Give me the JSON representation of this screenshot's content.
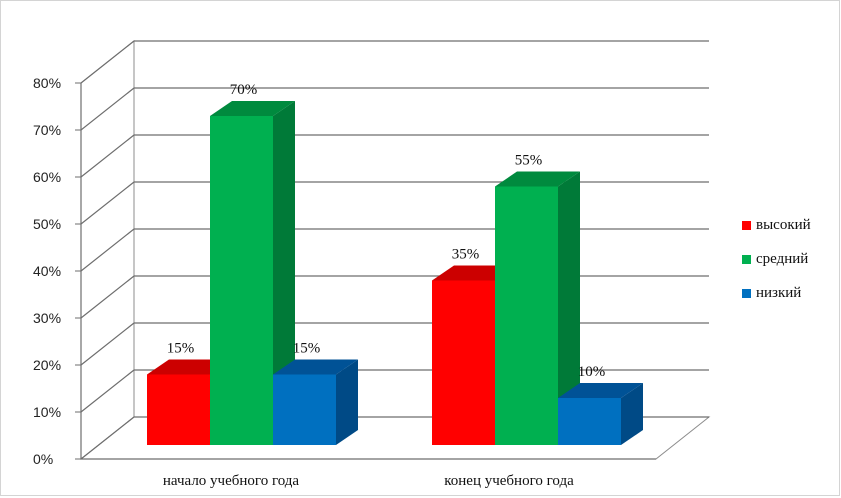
{
  "chart_data": {
    "type": "bar",
    "categories": [
      "начало учебного года",
      "конец учебного года"
    ],
    "series": [
      {
        "name": "высокий",
        "values": [
          15,
          35
        ],
        "labels": [
          "15%",
          "35%"
        ],
        "color": "#ff0000",
        "side": "#c00000",
        "top": "#cc0000"
      },
      {
        "name": "средний",
        "values": [
          70,
          55
        ],
        "labels": [
          "70%",
          "55%"
        ],
        "color": "#00b050",
        "side": "#007a38",
        "top": "#008a3e"
      },
      {
        "name": "низкий",
        "values": [
          15,
          10
        ],
        "labels": [
          "15%",
          "10%"
        ],
        "color": "#0070c0",
        "side": "#004a86",
        "top": "#005296"
      }
    ],
    "yticks": [
      "0%",
      "10%",
      "20%",
      "30%",
      "40%",
      "50%",
      "60%",
      "70%",
      "80%"
    ],
    "ylim": [
      0,
      80
    ],
    "grid": true,
    "legend_position": "right",
    "title": "",
    "xlabel": "",
    "ylabel": ""
  }
}
